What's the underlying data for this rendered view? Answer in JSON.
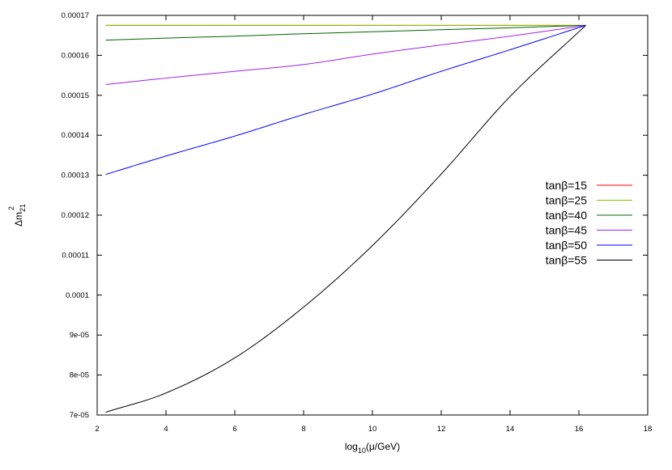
{
  "chart_data": {
    "type": "line",
    "xlabel": {
      "prefix": "log",
      "sub": "10",
      "suffix": "(μ/GeV)"
    },
    "ylabel": {
      "base": "Δm",
      "sub": "21",
      "sup": "2"
    },
    "xlim": [
      2,
      18
    ],
    "ylim": [
      7e-05,
      0.00017
    ],
    "xticks": [
      2,
      4,
      6,
      8,
      10,
      12,
      14,
      16,
      18
    ],
    "xtick_labels": [
      "2",
      "4",
      "6",
      "8",
      "10",
      "12",
      "14",
      "16",
      "18"
    ],
    "yticks": [
      7e-05,
      8e-05,
      9e-05,
      0.0001,
      0.00011,
      0.00012,
      0.00013,
      0.00014,
      0.00015,
      0.00016,
      0.00017
    ],
    "ytick_labels": [
      "7e-05",
      "8e-05",
      "9e-05",
      "0.0001",
      "0.00011",
      "0.00012",
      "0.00013",
      "0.00014",
      "0.00015",
      "0.00016",
      "0.00017"
    ],
    "grid": false,
    "legend_position": "right",
    "series": [
      {
        "name": "tanβ=15",
        "color": "#ff0000",
        "x": [
          2.25,
          16.2
        ],
        "y": [
          0.0001675,
          0.0001675
        ]
      },
      {
        "name": "tanβ=25",
        "color": "#80c800",
        "x": [
          2.25,
          16.2
        ],
        "y": [
          0.0001675,
          0.0001675
        ]
      },
      {
        "name": "tanβ=40",
        "color": "#006400",
        "x": [
          2.25,
          4,
          6,
          8,
          10,
          12,
          14,
          16.2
        ],
        "y": [
          0.0001638,
          0.0001643,
          0.0001648,
          0.0001654,
          0.0001659,
          0.0001664,
          0.0001669,
          0.0001675
        ]
      },
      {
        "name": "tanβ=45",
        "color": "#a020f0",
        "x": [
          2.25,
          4,
          6,
          8,
          10,
          12,
          14,
          16.2
        ],
        "y": [
          0.0001527,
          0.0001543,
          0.000156,
          0.0001577,
          0.0001603,
          0.0001626,
          0.0001648,
          0.0001675
        ]
      },
      {
        "name": "tanβ=50",
        "color": "#0000ff",
        "x": [
          2.25,
          4,
          6,
          8,
          10,
          12,
          14,
          16.2
        ],
        "y": [
          0.0001302,
          0.0001348,
          0.0001398,
          0.0001452,
          0.0001503,
          0.000156,
          0.0001614,
          0.0001675
        ]
      },
      {
        "name": "tanβ=55",
        "color": "#000000",
        "x": [
          2.25,
          4,
          6,
          8,
          10,
          12,
          14,
          16.2
        ],
        "y": [
          7.07e-05,
          7.55e-05,
          8.43e-05,
          9.7e-05,
          0.0001124,
          0.0001303,
          0.0001497,
          0.0001675
        ]
      }
    ]
  }
}
